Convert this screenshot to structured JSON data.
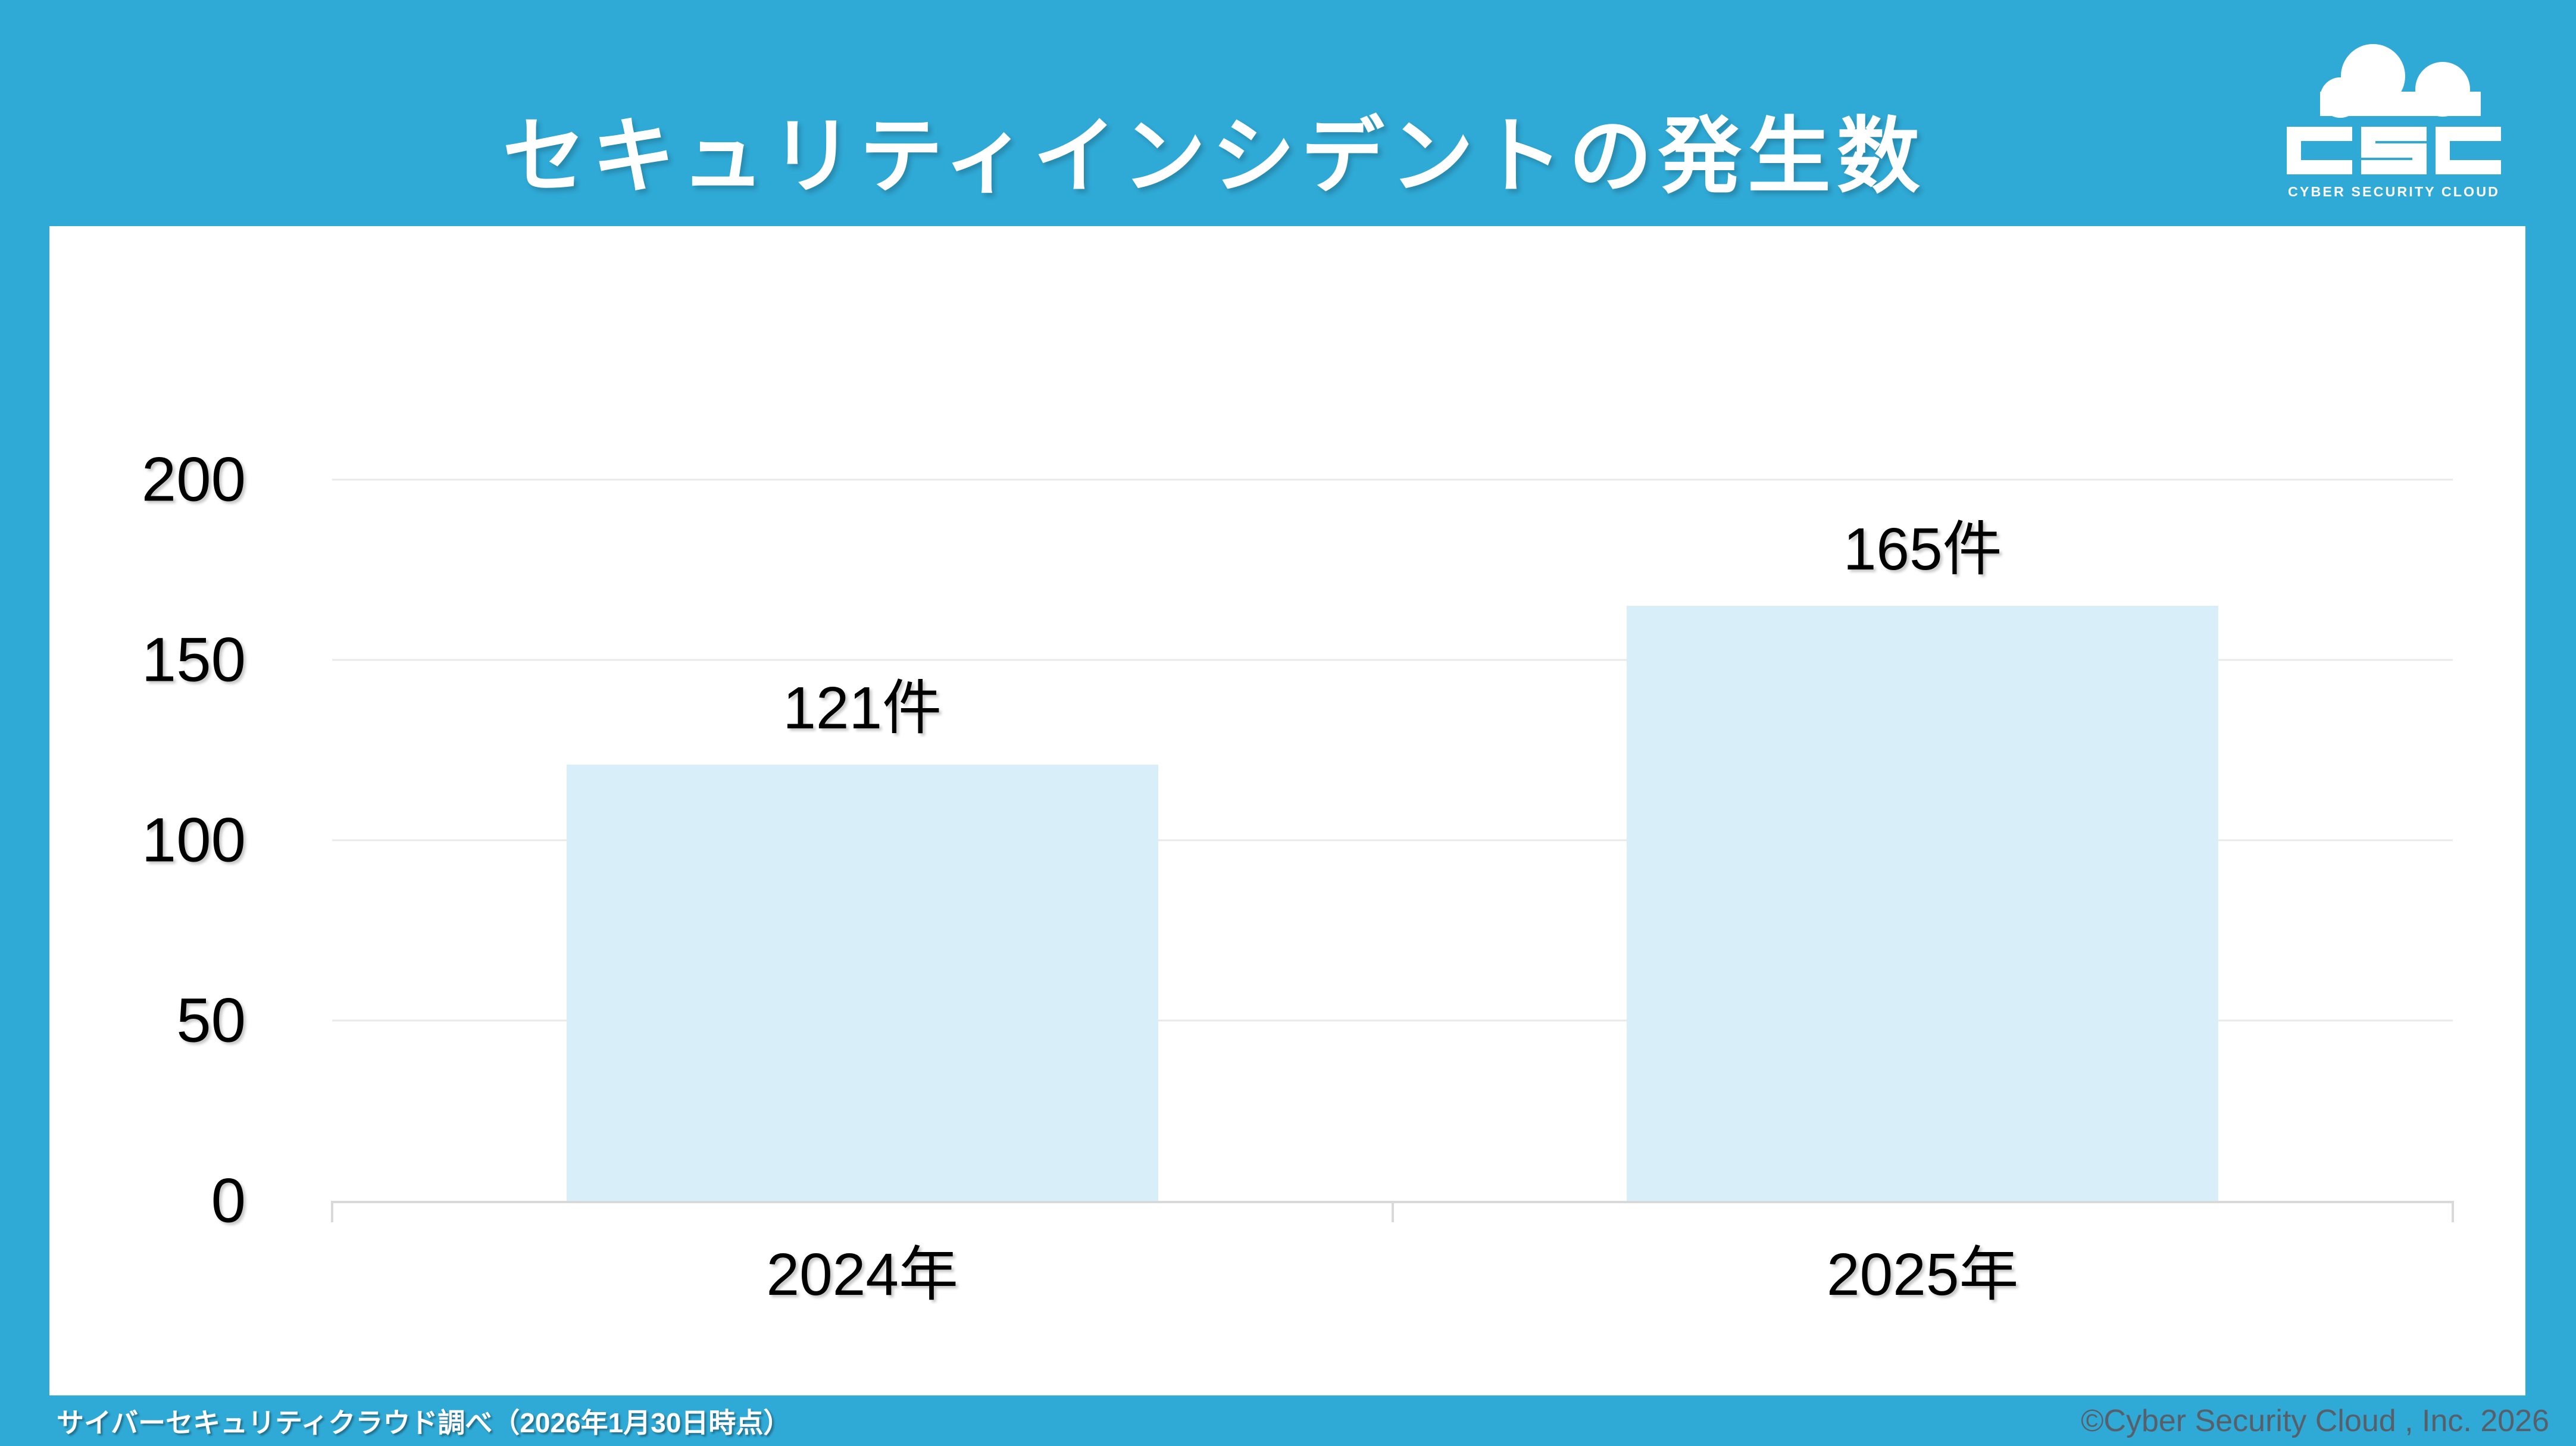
{
  "header": {
    "title": "セキュリティインシデントの発生数"
  },
  "logo": {
    "acronym": "CSC",
    "tagline": "CYBER SECURITY CLOUD"
  },
  "chart_data": {
    "type": "bar",
    "title": "セキュリティインシデントの発生数",
    "categories": [
      "2024年",
      "2025年"
    ],
    "values": [
      121,
      165
    ],
    "value_labels": [
      "121件",
      "165件"
    ],
    "unit": "件",
    "ylim": [
      0,
      200
    ],
    "yticks": [
      0,
      50,
      100,
      150,
      200
    ],
    "xlabel": "",
    "ylabel": "",
    "grid": true,
    "legend": false,
    "bar_color": "#D8EEF8",
    "gridline_color": "#E9E9E9",
    "axis_color": "#D9D9D9",
    "label_color": "#000000"
  },
  "footer": {
    "source_note": "サイバーセキュリティクラウド調べ（2026年1月30日時点）",
    "copyright": "©Cyber Security Cloud , Inc. 2026"
  },
  "colors": {
    "background": "#2FA9D5",
    "panel": "#FFFFFF",
    "title_text": "#FFFFFF",
    "copyright_text": "#57606A"
  }
}
